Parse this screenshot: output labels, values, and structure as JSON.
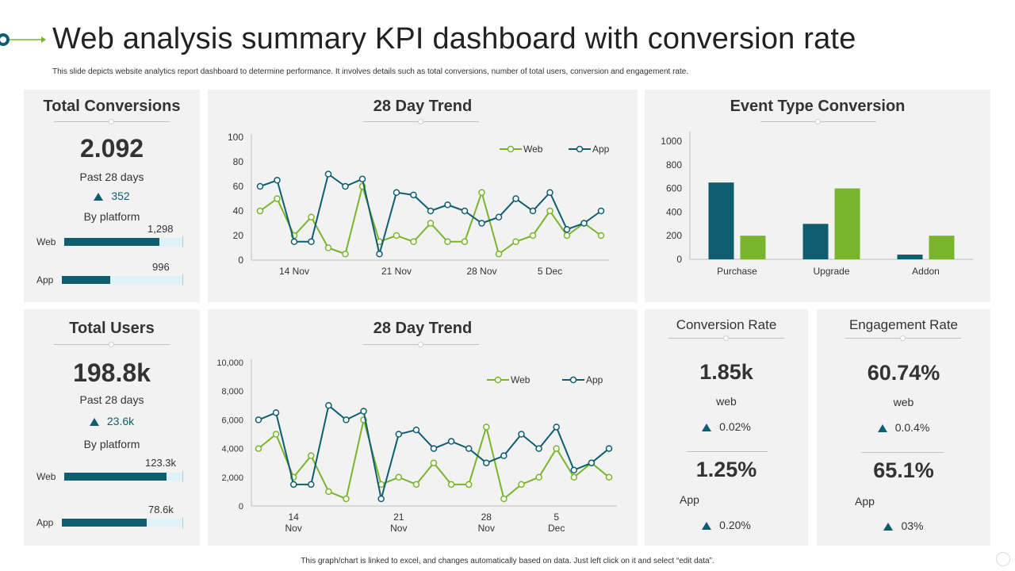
{
  "page": {
    "title": "Web analysis summary KPI dashboard with conversion rate",
    "subtitle": "This slide depicts website analytics report dashboard to determine performance. It involves details such as total conversions, number of total users, conversion and engagement rate.",
    "footer": "This graph/chart is linked to excel, and changes automatically based on data. Just left click on it and select “edit data”."
  },
  "colors": {
    "web": "#78b52d",
    "app": "#0e5e6f",
    "panel": "#f2f2f2",
    "track": "#ddf3f7"
  },
  "total_conversions": {
    "title": "Total Conversions",
    "value": "2.092",
    "period": "Past 28 days",
    "delta": "352",
    "by_platform": "By platform",
    "web_label": "Web",
    "web_value": "1,298",
    "web_fraction": 0.8,
    "app_label": "App",
    "app_value": "996",
    "app_fraction": 0.4
  },
  "total_users": {
    "title": "Total Users",
    "value": "198.8k",
    "period": "Past 28 days",
    "delta": "23.6k",
    "by_platform": "By platform",
    "web_label": "Web",
    "web_value": "123.3k",
    "web_fraction": 0.86,
    "app_label": "App",
    "app_value": "78.6k",
    "app_fraction": 0.7
  },
  "trend1": {
    "title": "28  Day Trend"
  },
  "trend2": {
    "title": "28 Day Trend"
  },
  "event_type": {
    "title": "Event Type Conversion"
  },
  "conversion_rate": {
    "title": "Conversion Rate",
    "value1": "1.85k",
    "label1": "web",
    "delta1": "0.02%",
    "value2": "1.25%",
    "label2": "App",
    "delta2": "0.20%"
  },
  "engagement_rate": {
    "title": "Engagement Rate",
    "value1": "60.74%",
    "label1": "web",
    "delta1": "0.0.4%",
    "value2": "65.1%",
    "label2": "App",
    "delta2": "03%"
  },
  "chart_data": [
    {
      "type": "line",
      "title": "28  Day Trend",
      "ylim": [
        0,
        100
      ],
      "yticks": [
        "0",
        "20",
        "40",
        "60",
        "80",
        "100"
      ],
      "x_tick_labels": [
        {
          "index": 2,
          "lines": [
            "14 Nov"
          ]
        },
        {
          "index": 8,
          "lines": [
            "21 Nov"
          ]
        },
        {
          "index": 13,
          "lines": [
            "28 Nov"
          ]
        },
        {
          "index": 17,
          "lines": [
            "5 Dec"
          ]
        }
      ],
      "legend": "top-right",
      "grid": false,
      "series": [
        {
          "name": "Web",
          "values": [
            40,
            50,
            20,
            35,
            10,
            5,
            60,
            15,
            20,
            15,
            30,
            15,
            15,
            55,
            5,
            15,
            20,
            40,
            20,
            30,
            20
          ]
        },
        {
          "name": "App",
          "values": [
            60,
            65,
            15,
            15,
            70,
            60,
            66,
            5,
            55,
            53,
            40,
            45,
            40,
            30,
            35,
            50,
            40,
            55,
            25,
            30,
            40
          ]
        }
      ]
    },
    {
      "type": "bar",
      "title": "Event Type Conversion",
      "categories": [
        "Purchase",
        "Upgrade",
        "Addon"
      ],
      "ylim": [
        0,
        1000
      ],
      "yticks": [
        "0",
        "200",
        "400",
        "600",
        "800",
        "1000"
      ],
      "grid": false,
      "series": [
        {
          "name": "App",
          "values": [
            650,
            300,
            40
          ]
        },
        {
          "name": "Web",
          "values": [
            200,
            600,
            200
          ]
        }
      ]
    },
    {
      "type": "line",
      "title": "28 Day Trend",
      "ylim": [
        0,
        10000
      ],
      "yticks": [
        "0",
        "2,000",
        "4,000",
        "6,000",
        "8,000",
        "10,000"
      ],
      "x_tick_labels": [
        {
          "index": 2,
          "lines": [
            "14",
            "Nov"
          ]
        },
        {
          "index": 8,
          "lines": [
            "21",
            "Nov"
          ]
        },
        {
          "index": 13,
          "lines": [
            "28",
            "Nov"
          ]
        },
        {
          "index": 17,
          "lines": [
            "5",
            "Dec"
          ]
        }
      ],
      "legend": "top-right",
      "grid": false,
      "series": [
        {
          "name": "Web",
          "values": [
            4000,
            5000,
            2000,
            3500,
            1000,
            500,
            6000,
            1500,
            2000,
            1500,
            3000,
            1500,
            1500,
            5500,
            500,
            1500,
            2000,
            4000,
            2000,
            3000,
            2000
          ]
        },
        {
          "name": "App",
          "values": [
            6000,
            6500,
            1500,
            1500,
            7000,
            6000,
            6600,
            500,
            5000,
            5300,
            4000,
            4500,
            4000,
            3000,
            3500,
            5000,
            4000,
            5500,
            2500,
            3000,
            4000
          ]
        }
      ]
    }
  ]
}
